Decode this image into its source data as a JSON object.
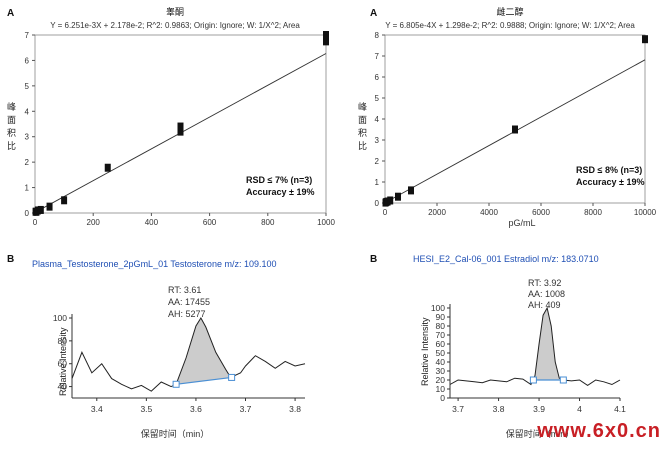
{
  "panels": [
    {
      "panel_label": "A",
      "title": "睾酮",
      "equation": "Y = 6.251e-3X + 2.178e-2; R^2: 0.9863; Origin: Ignore; W: 1/X^2; Area",
      "ylabel": "峰面积比",
      "annotation": [
        "RSD ≤ 7% (n=3)",
        "Accuracy ± 19%"
      ]
    },
    {
      "panel_label": "A",
      "title": "雌二醇",
      "equation": "Y = 6.805e-4X + 1.298e-2; R^2: 0.9888; Origin: Ignore; W: 1/X^2; Area",
      "ylabel": "峰面积比",
      "xlabel": "pG/mL",
      "annotation": [
        "RSD ≤ 8% (n=3)",
        "Accuracy ± 19%"
      ]
    },
    {
      "panel_label": "B",
      "header": "Plasma_Testosterone_2pGmL_01   Testosterone   m/z: 109.100",
      "ylabel": "Relative Intensity",
      "xlabel": "保留时间（min）",
      "peak": [
        "RT: 3.61",
        "AA: 17455",
        "AH: 5277"
      ]
    },
    {
      "panel_label": "B",
      "header": "HESI_E2_Cal-06_001   Estradiol   m/z: 183.0710",
      "ylabel": "Relative Intensity",
      "xlabel": "保留时间（min）",
      "peak": [
        "RT: 3.92",
        "AA: 1008",
        "AH: 409"
      ]
    }
  ],
  "watermark": "www.6x0.cn",
  "colors": {
    "baseline": "#4a8fd4",
    "peak_fill": "#cccccc",
    "header_text": "#1f4fb4",
    "watermark": "#c81f25"
  },
  "chart_data": [
    {
      "type": "scatter",
      "title": "睾酮",
      "xlim": [
        0,
        1000
      ],
      "ylim": [
        0,
        7
      ],
      "xticks": [
        0,
        200,
        400,
        600,
        800,
        1000
      ],
      "yticks": [
        0,
        1,
        2,
        3,
        4,
        5,
        6,
        7
      ],
      "points": [
        [
          2,
          0.05
        ],
        [
          5,
          0.05
        ],
        [
          10,
          0.1
        ],
        [
          20,
          0.12
        ],
        [
          50,
          0.25
        ],
        [
          100,
          0.5
        ],
        [
          250,
          1.78
        ],
        [
          500,
          3.2
        ],
        [
          500,
          3.4
        ],
        [
          1000,
          6.75
        ],
        [
          1000,
          7.0
        ]
      ],
      "fit": {
        "slope": 0.006251,
        "intercept": 0.02178
      }
    },
    {
      "type": "scatter",
      "title": "雌二醇",
      "xlabel": "pG/mL",
      "xlim": [
        0,
        10000
      ],
      "ylim": [
        0,
        8
      ],
      "xticks": [
        0,
        2000,
        4000,
        6000,
        8000,
        10000
      ],
      "yticks": [
        0,
        1,
        2,
        3,
        4,
        5,
        6,
        7,
        8
      ],
      "points": [
        [
          20,
          0.02
        ],
        [
          50,
          0.05
        ],
        [
          100,
          0.07
        ],
        [
          200,
          0.12
        ],
        [
          500,
          0.3
        ],
        [
          1000,
          0.6
        ],
        [
          5000,
          3.5
        ],
        [
          10000,
          7.8
        ]
      ],
      "fit": {
        "slope": 0.0006805,
        "intercept": 0.01298
      }
    },
    {
      "type": "line",
      "ylabel": "Relative Intensity",
      "xlim": [
        3.35,
        3.82
      ],
      "ylim": [
        30,
        100
      ],
      "xticks": [
        3.4,
        3.5,
        3.6,
        3.7,
        3.8
      ],
      "yticks": [
        40,
        60,
        80,
        100
      ],
      "x": [
        3.35,
        3.37,
        3.39,
        3.41,
        3.43,
        3.45,
        3.47,
        3.49,
        3.51,
        3.53,
        3.55,
        3.56,
        3.58,
        3.6,
        3.61,
        3.62,
        3.64,
        3.66,
        3.67,
        3.69,
        3.7,
        3.72,
        3.74,
        3.76,
        3.78,
        3.8,
        3.82
      ],
      "y": [
        47,
        70,
        52,
        60,
        47,
        42,
        38,
        41,
        36,
        44,
        40,
        42,
        65,
        93,
        100,
        92,
        70,
        55,
        48,
        52,
        58,
        67,
        62,
        56,
        62,
        58,
        60
      ],
      "baseline": [
        [
          3.56,
          42
        ],
        [
          3.672,
          48
        ]
      ],
      "peak_rt": 3.61
    },
    {
      "type": "line",
      "ylabel": "Relative Intensity",
      "xlim": [
        3.68,
        4.1
      ],
      "ylim": [
        0,
        100
      ],
      "xticks": [
        3.7,
        3.8,
        3.9,
        4.0,
        4.1
      ],
      "yticks": [
        0,
        10,
        20,
        30,
        40,
        50,
        60,
        70,
        80,
        90,
        100
      ],
      "x": [
        3.68,
        3.7,
        3.72,
        3.74,
        3.76,
        3.78,
        3.8,
        3.82,
        3.84,
        3.86,
        3.88,
        3.89,
        3.9,
        3.91,
        3.92,
        3.93,
        3.94,
        3.95,
        3.96,
        3.98,
        4.0,
        4.02,
        4.04,
        4.06,
        4.08,
        4.1
      ],
      "y": [
        15,
        20,
        19,
        18,
        17,
        20,
        19,
        18,
        22,
        21,
        15,
        25,
        60,
        92,
        100,
        80,
        40,
        22,
        20,
        19,
        20,
        14,
        20,
        18,
        15,
        20
      ],
      "baseline": [
        [
          3.886,
          20
        ],
        [
          3.96,
          20
        ]
      ],
      "peak_rt": 3.92
    }
  ]
}
